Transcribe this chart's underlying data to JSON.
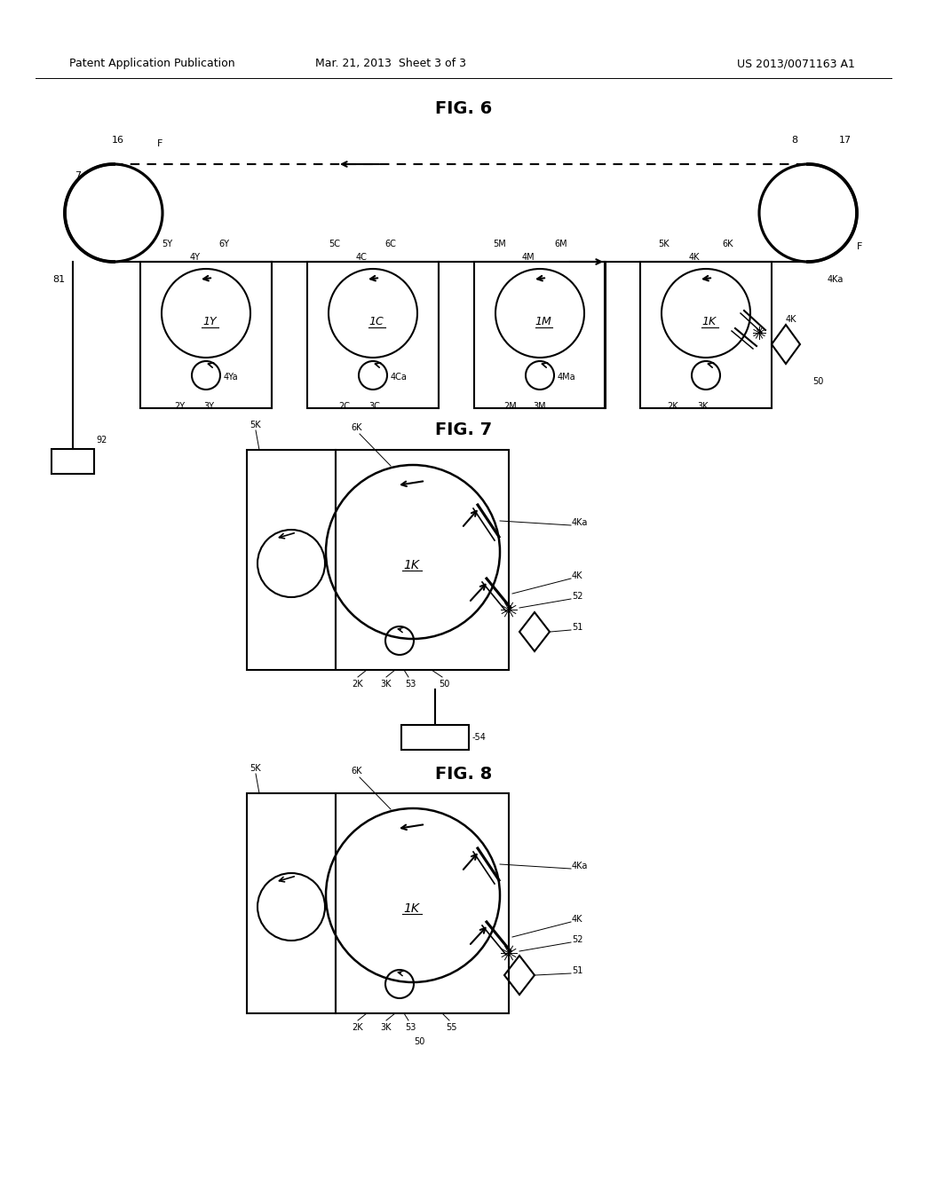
{
  "bg_color": "#ffffff",
  "text_color": "#000000",
  "header_left": "Patent Application Publication",
  "header_center": "Mar. 21, 2013  Sheet 3 of 3",
  "header_right": "US 2013/0071163 A1",
  "fig6_title": "FIG. 6",
  "fig7_title": "FIG. 7",
  "fig8_title": "FIG. 8"
}
